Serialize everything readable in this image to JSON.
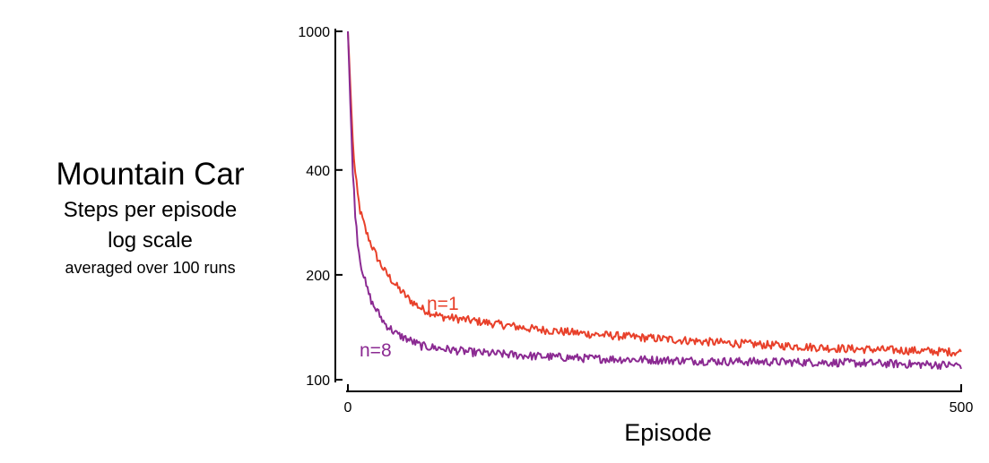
{
  "side_title": {
    "line1": "Mountain Car",
    "line2": "Steps per episode",
    "line3": "log scale",
    "line4": "averaged over 100 runs"
  },
  "colors": {
    "n1": "#e8402a",
    "n8": "#8b2a92",
    "axis": "#000000"
  },
  "chart_data": {
    "type": "line",
    "title": "Mountain Car",
    "xlabel": "Episode",
    "ylabel": "Steps per episode",
    "yscale": "log",
    "xlim": [
      0,
      500
    ],
    "ylim": [
      100,
      1000
    ],
    "xticks": [
      0,
      500
    ],
    "yticks": [
      100,
      200,
      400,
      1000
    ],
    "grid": false,
    "legend": "inline labels",
    "series": [
      {
        "name": "n=1",
        "color": "#e8402a",
        "x": [
          0,
          2,
          4,
          6,
          8,
          10,
          15,
          20,
          25,
          30,
          40,
          50,
          60,
          75,
          100,
          150,
          200,
          300,
          400,
          500
        ],
        "y": [
          1000,
          700,
          480,
          390,
          340,
          305,
          265,
          240,
          220,
          205,
          185,
          170,
          160,
          152,
          148,
          140,
          135,
          128,
          123,
          120
        ]
      },
      {
        "name": "n=8",
        "color": "#8b2a92",
        "x": [
          0,
          2,
          4,
          6,
          8,
          10,
          15,
          20,
          25,
          30,
          40,
          50,
          60,
          75,
          100,
          150,
          200,
          300,
          400,
          500
        ],
        "y": [
          1000,
          620,
          400,
          300,
          250,
          220,
          185,
          165,
          155,
          145,
          135,
          130,
          125,
          123,
          120,
          117,
          115,
          113,
          112,
          110
        ]
      }
    ]
  }
}
